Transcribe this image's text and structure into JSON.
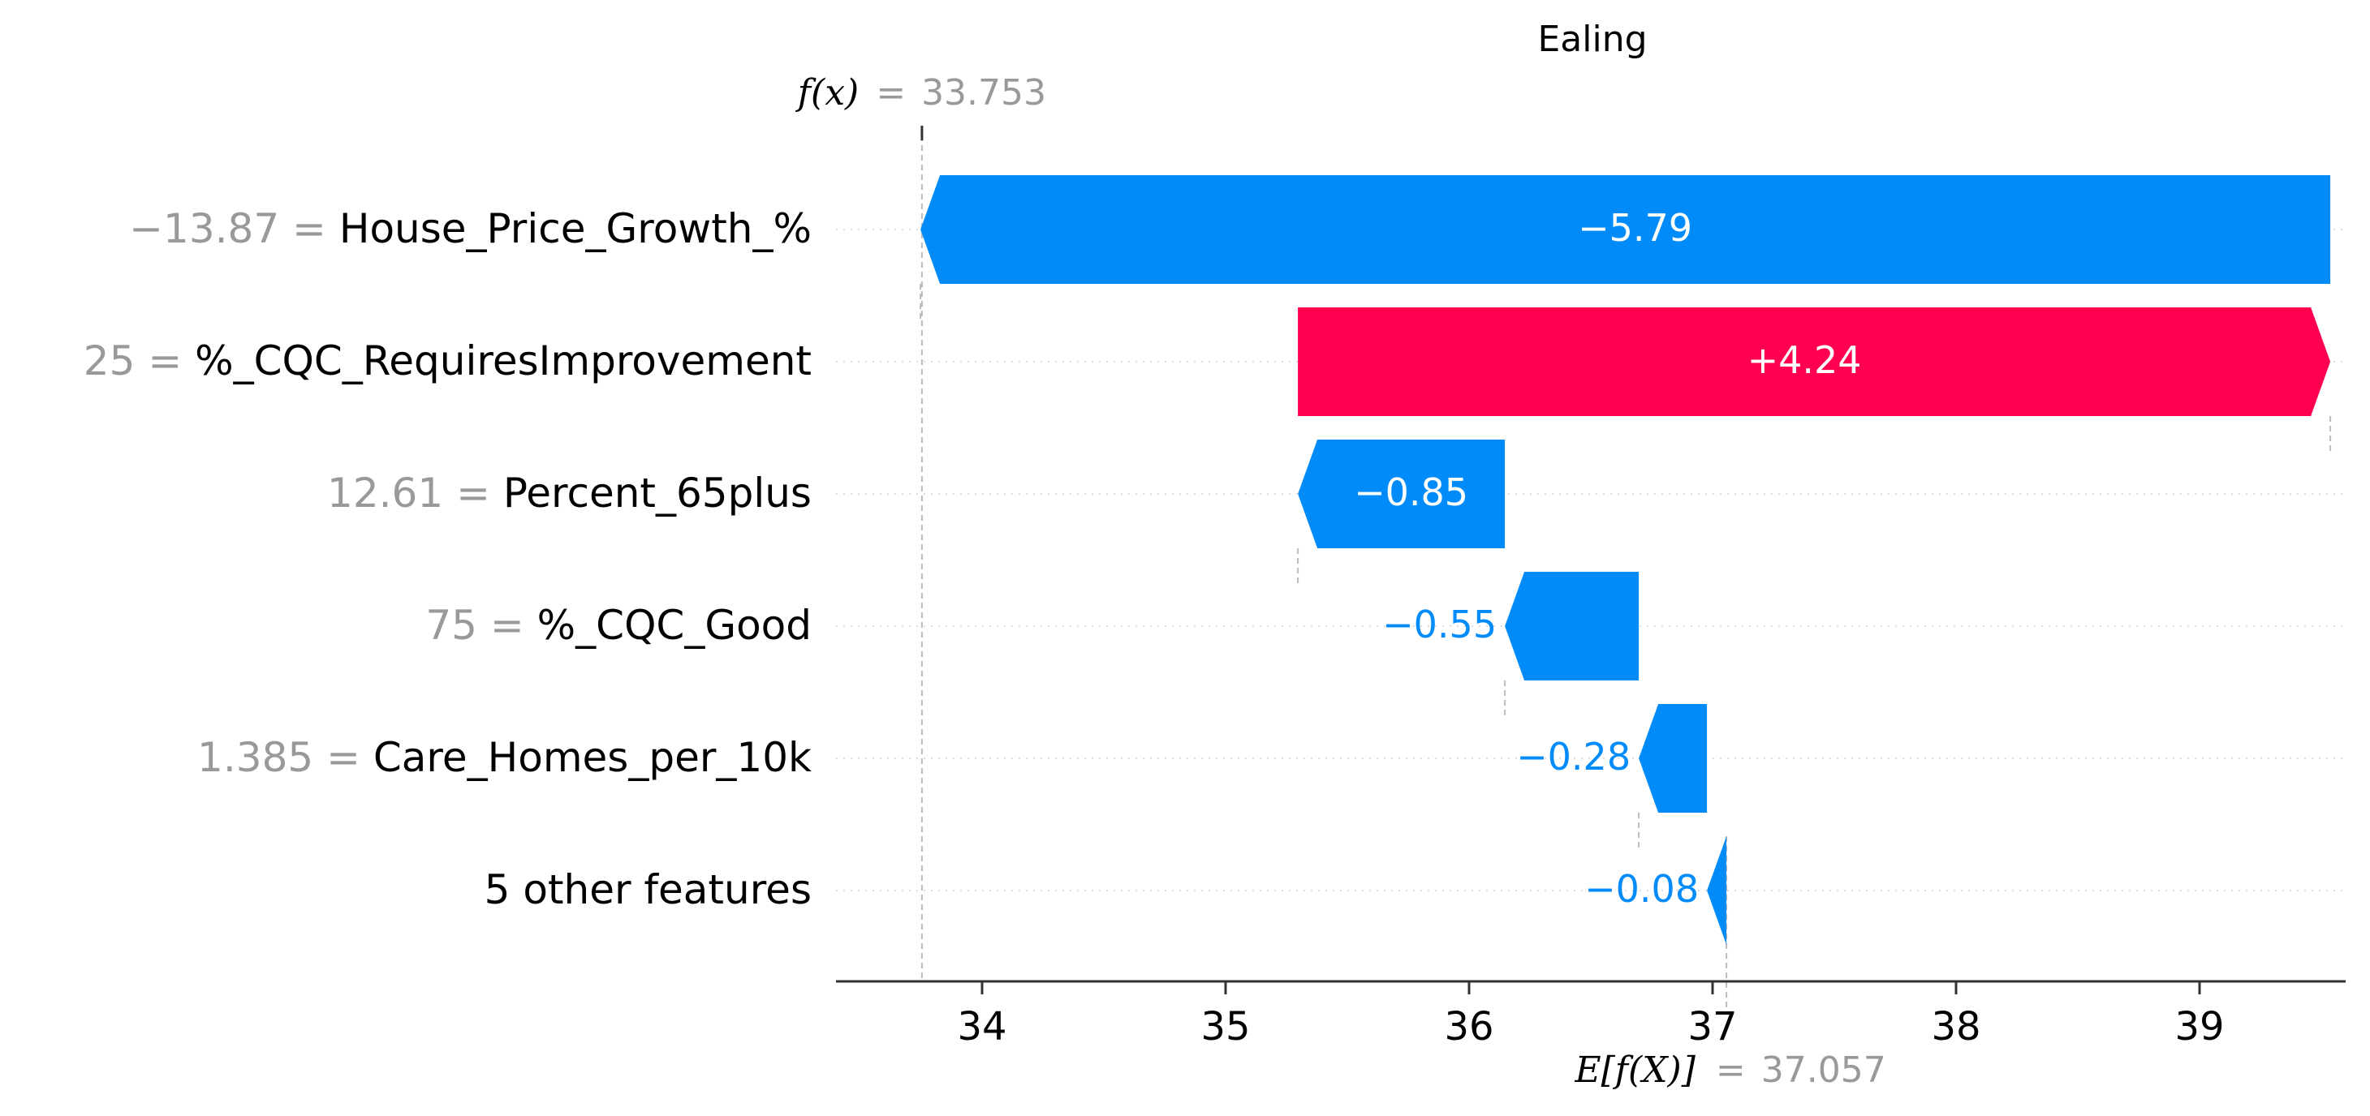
{
  "chart_data": {
    "type": "waterfall",
    "title": "Ealing",
    "fx": {
      "symbol": "f(x)",
      "equals": "=",
      "value_text": "33.753",
      "value": 33.753
    },
    "base": {
      "symbol": "E[f(X)]",
      "equals": "=",
      "value_text": "37.057",
      "value": 37.057
    },
    "xlim": [
      33.4,
      39.6
    ],
    "xticks": [
      {
        "value": 34,
        "label": "34"
      },
      {
        "value": 35,
        "label": "35"
      },
      {
        "value": 36,
        "label": "36"
      },
      {
        "value": 37,
        "label": "37"
      },
      {
        "value": 38,
        "label": "38"
      },
      {
        "value": 39,
        "label": "39"
      }
    ],
    "grid": "horizontal dotted",
    "colors": {
      "positive": "#ff0051",
      "negative": "#008bfb",
      "feature_value": "#999999",
      "text": "#000000"
    },
    "features": [
      {
        "value_text": "−13.87",
        "eq": "=",
        "name": "House_Price_Growth_%",
        "shap": -5.79,
        "label": "−5.79"
      },
      {
        "value_text": "25",
        "eq": "=",
        "name": "%_CQC_RequiresImprovement",
        "shap": 4.24,
        "label": "+4.24"
      },
      {
        "value_text": "12.61",
        "eq": "=",
        "name": "Percent_65plus",
        "shap": -0.85,
        "label": "−0.85"
      },
      {
        "value_text": "75",
        "eq": "=",
        "name": "%_CQC_Good",
        "shap": -0.55,
        "label": "−0.55"
      },
      {
        "value_text": "1.385",
        "eq": "=",
        "name": "Care_Homes_per_10k",
        "shap": -0.28,
        "label": "−0.28"
      },
      {
        "value_text": "",
        "eq": "",
        "name": "5 other features",
        "shap": -0.08,
        "label": "−0.08"
      }
    ]
  }
}
